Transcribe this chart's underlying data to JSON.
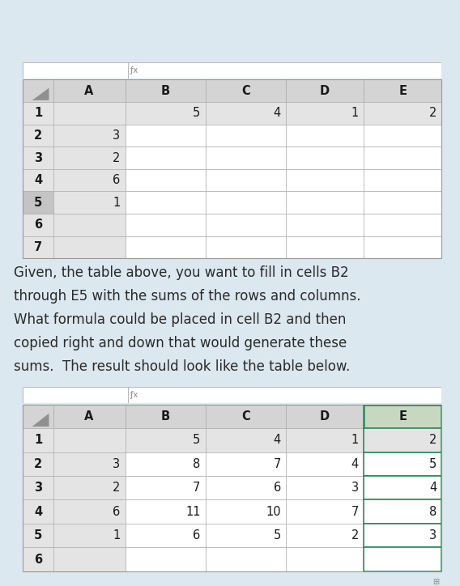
{
  "background_color": "#dce8f0",
  "table1": {
    "col_headers": [
      "",
      "A",
      "B",
      "C",
      "D",
      "E"
    ],
    "rows": [
      [
        "1",
        "",
        "5",
        "4",
        "1",
        "2"
      ],
      [
        "2",
        "3",
        "",
        "",
        "",
        ""
      ],
      [
        "3",
        "2",
        "",
        "",
        "",
        ""
      ],
      [
        "4",
        "6",
        "",
        "",
        "",
        ""
      ],
      [
        "5",
        "1",
        "",
        "",
        "",
        ""
      ],
      [
        "6",
        "",
        "",
        "",
        "",
        ""
      ],
      [
        "7",
        "",
        "",
        "",
        "",
        ""
      ]
    ],
    "header_bg": "#d4d4d4",
    "row_header_bg": "#e4e4e4",
    "cell_bg_white": "#ffffff",
    "cell_bg_gray": "#e4e4e4",
    "row1_shaded": true,
    "colA_shaded": true
  },
  "table2": {
    "col_headers": [
      "",
      "A",
      "B",
      "C",
      "D",
      "E"
    ],
    "rows": [
      [
        "1",
        "",
        "5",
        "4",
        "1",
        "2"
      ],
      [
        "2",
        "3",
        "8",
        "7",
        "4",
        "5"
      ],
      [
        "3",
        "2",
        "7",
        "6",
        "3",
        "4"
      ],
      [
        "4",
        "6",
        "11",
        "10",
        "7",
        "8"
      ],
      [
        "5",
        "1",
        "6",
        "5",
        "2",
        "3"
      ],
      [
        "6",
        "",
        "",
        "",
        "",
        ""
      ]
    ],
    "header_bg": "#d4d4d4",
    "row_header_bg": "#e4e4e4",
    "cell_bg_white": "#ffffff",
    "cell_bg_gray": "#e4e4e4",
    "selected_E_bg": "#c8d8c0",
    "selected_E_border": "#2a8a5a"
  },
  "text_lines": [
    "Given, the table above, you want to fill in cells B2",
    "through E5 with the sums of the rows and columns.",
    "What formula could be placed in cell B2 and then",
    "copied right and down that would generate these",
    "sums.  The result should look like the table below."
  ],
  "text_fontsize": 12.0,
  "text_color": "#2a2a2a"
}
